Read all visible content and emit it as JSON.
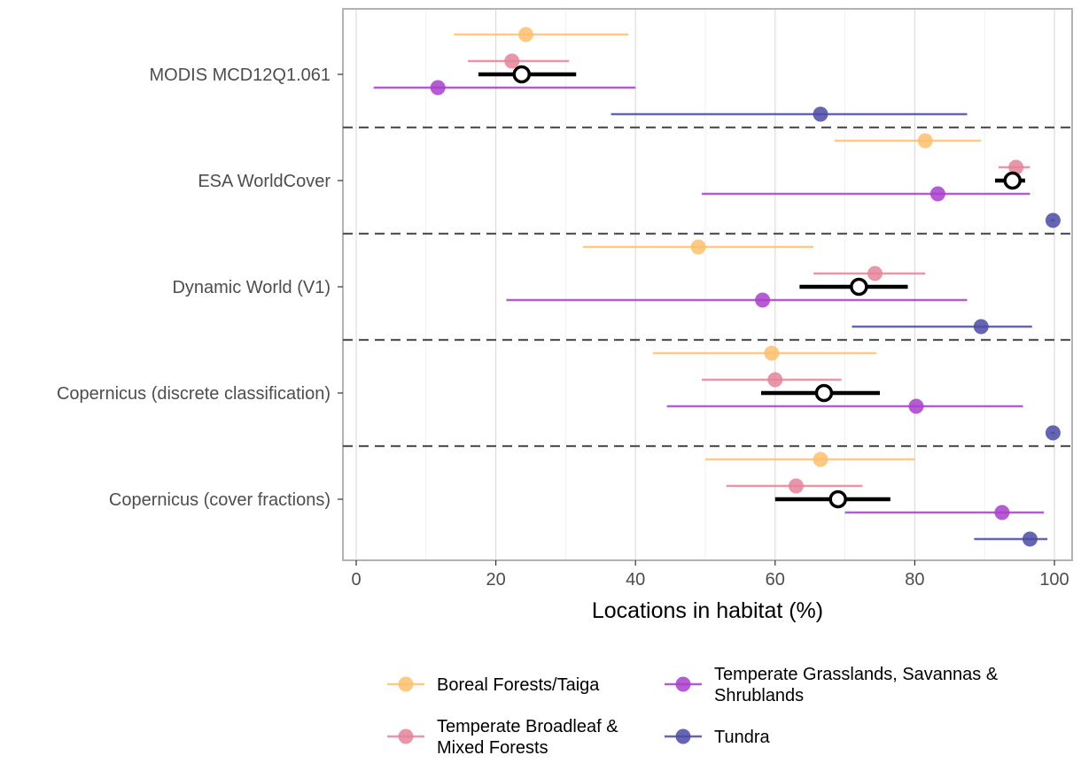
{
  "chart_data": {
    "type": "scatter",
    "subtype": "dot-and-whisker (point estimates with ranges)",
    "title": "",
    "xlabel": "Locations in habitat (%)",
    "ylabel": "",
    "xlim": [
      0,
      100
    ],
    "x_ticks": [
      0,
      20,
      40,
      60,
      80,
      100
    ],
    "x_tick_labels": [
      "0",
      "20",
      "40",
      "60",
      "80",
      "100"
    ],
    "grid": "vertical major and minor gridlines",
    "group_separators": "dashed lines",
    "legend_position": "bottom",
    "categories": [
      "MODIS MCD12Q1.061",
      "ESA WorldCover",
      "Dynamic World (V1)",
      "Copernicus (discrete classification)",
      "Copernicus (cover fractions)"
    ],
    "series": [
      {
        "name": "Boreal Forests/Taiga",
        "color": "#fdbf6f",
        "points": [
          {
            "category": "MODIS MCD12Q1.061",
            "x": 24.3,
            "low": 14.0,
            "high": 39.0
          },
          {
            "category": "ESA WorldCover",
            "x": 81.5,
            "low": 68.5,
            "high": 89.5
          },
          {
            "category": "Dynamic World (V1)",
            "x": 49.0,
            "low": 32.5,
            "high": 65.5
          },
          {
            "category": "Copernicus (discrete classification)",
            "x": 59.5,
            "low": 42.5,
            "high": 74.5
          },
          {
            "category": "Copernicus (cover fractions)",
            "x": 66.5,
            "low": 50.0,
            "high": 80.0
          }
        ]
      },
      {
        "name": "Temperate Broadleaf & Mixed Forests",
        "color": "#e5849a",
        "points": [
          {
            "category": "MODIS MCD12Q1.061",
            "x": 22.3,
            "low": 16.0,
            "high": 30.5
          },
          {
            "category": "ESA WorldCover",
            "x": 94.5,
            "low": 92.0,
            "high": 96.5
          },
          {
            "category": "Dynamic World (V1)",
            "x": 74.3,
            "low": 65.5,
            "high": 81.5
          },
          {
            "category": "Copernicus (discrete classification)",
            "x": 60.0,
            "low": 49.5,
            "high": 69.5
          },
          {
            "category": "Copernicus (cover fractions)",
            "x": 63.0,
            "low": 53.0,
            "high": 72.5
          }
        ]
      },
      {
        "name": "Temperate Grasslands, Savannas & Shrublands",
        "color": "#a83fcc",
        "points": [
          {
            "category": "MODIS MCD12Q1.061",
            "x": 11.7,
            "low": 2.5,
            "high": 40.0
          },
          {
            "category": "ESA WorldCover",
            "x": 83.3,
            "low": 49.5,
            "high": 96.5
          },
          {
            "category": "Dynamic World (V1)",
            "x": 58.2,
            "low": 21.5,
            "high": 87.5
          },
          {
            "category": "Copernicus (discrete classification)",
            "x": 80.2,
            "low": 44.5,
            "high": 95.5
          },
          {
            "category": "Copernicus (cover fractions)",
            "x": 92.5,
            "low": 70.0,
            "high": 98.5
          }
        ]
      },
      {
        "name": "Tundra",
        "color": "#4b4aa6",
        "points": [
          {
            "category": "MODIS MCD12Q1.061",
            "x": 66.5,
            "low": 36.5,
            "high": 87.5
          },
          {
            "category": "ESA WorldCover",
            "x": 99.8,
            "low": 99.5,
            "high": 100.0
          },
          {
            "category": "Dynamic World (V1)",
            "x": 89.5,
            "low": 71.0,
            "high": 96.8
          },
          {
            "category": "Copernicus (discrete classification)",
            "x": 99.8,
            "low": 99.5,
            "high": 100.0
          },
          {
            "category": "Copernicus (cover fractions)",
            "x": 96.5,
            "low": 88.5,
            "high": 99.0
          }
        ]
      }
    ],
    "overall": {
      "color": "#000000",
      "points": [
        {
          "category": "MODIS MCD12Q1.061",
          "x": 23.7,
          "low": 17.5,
          "high": 31.5
        },
        {
          "category": "ESA WorldCover",
          "x": 94.0,
          "low": 91.5,
          "high": 95.8
        },
        {
          "category": "Dynamic World (V1)",
          "x": 72.0,
          "low": 63.5,
          "high": 79.0
        },
        {
          "category": "Copernicus (discrete classification)",
          "x": 67.0,
          "low": 58.0,
          "high": 75.0
        },
        {
          "category": "Copernicus (cover fractions)",
          "x": 69.0,
          "low": 60.0,
          "high": 76.5
        }
      ]
    },
    "legend": {
      "entries": [
        {
          "label_lines": [
            "Boreal Forests/Taiga"
          ],
          "color": "#fdbf6f"
        },
        {
          "label_lines": [
            "Temperate Broadleaf &",
            " Mixed Forests"
          ],
          "color": "#e5849a"
        },
        {
          "label_lines": [
            "Temperate Grasslands, Savannas &",
            " Shrublands"
          ],
          "color": "#a83fcc"
        },
        {
          "label_lines": [
            "Tundra"
          ],
          "color": "#4b4aa6"
        }
      ]
    }
  }
}
